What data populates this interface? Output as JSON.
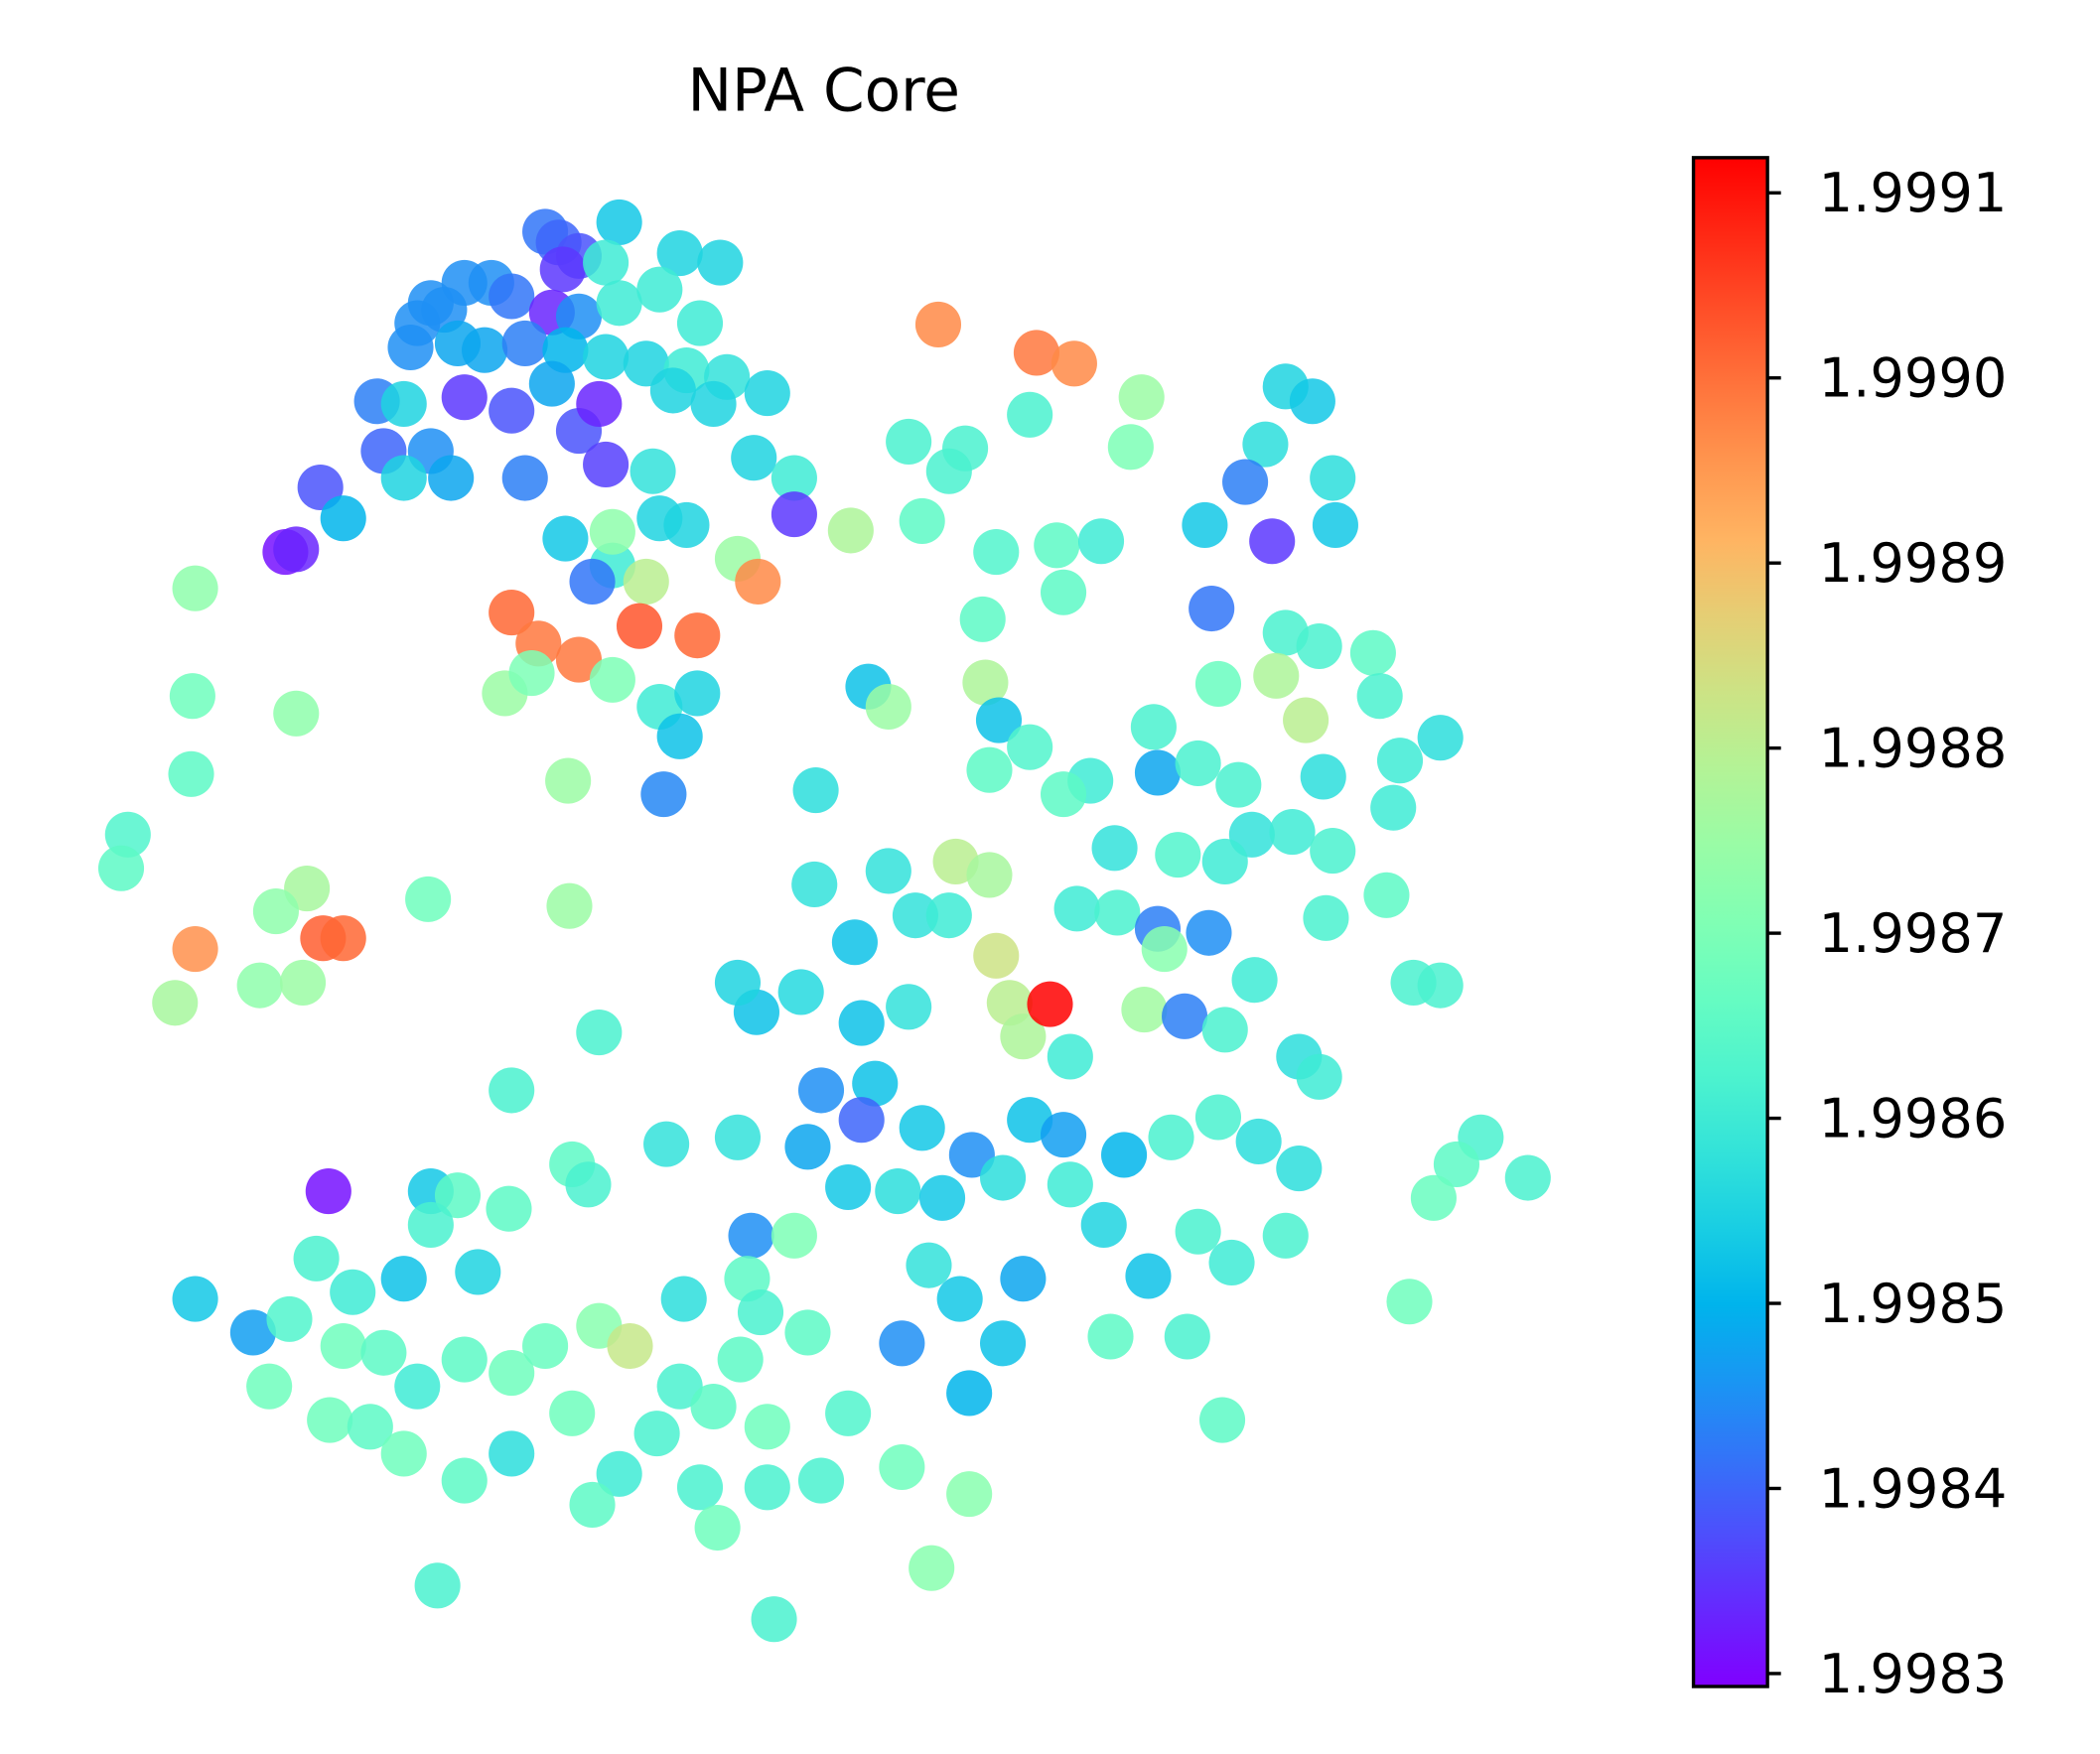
{
  "chart_data": {
    "type": "scatter",
    "title": "NPA Core",
    "colormap": "rainbow",
    "xlim": [
      60,
      1170
    ],
    "ylim": [
      1240,
      130
    ],
    "clim": [
      1.998293,
      1.999119
    ],
    "cticks": [
      1.9983,
      1.9984,
      1.9985,
      1.9986,
      1.9987,
      1.9988,
      1.9989,
      {
        "value": 1.999,
        "label": "1.9990"
      },
      1.9991
    ],
    "points": [
      [
        405,
        172,
        1.99842
      ],
      [
        415,
        180,
        1.9984
      ],
      [
        460,
        165,
        1.99853
      ],
      [
        430,
        190,
        1.99838
      ],
      [
        418,
        200,
        1.99835
      ],
      [
        450,
        195,
        1.9986
      ],
      [
        505,
        188,
        1.99855
      ],
      [
        535,
        195,
        1.99855
      ],
      [
        320,
        225,
        1.99845
      ],
      [
        345,
        210,
        1.99845
      ],
      [
        365,
        210,
        1.99845
      ],
      [
        380,
        220,
        1.99842
      ],
      [
        310,
        240,
        1.99845
      ],
      [
        330,
        230,
        1.99845
      ],
      [
        305,
        258,
        1.99845
      ],
      [
        340,
        255,
        1.99848
      ],
      [
        410,
        232,
        1.99833
      ],
      [
        430,
        235,
        1.99845
      ],
      [
        460,
        225,
        1.9986
      ],
      [
        490,
        215,
        1.9986
      ],
      [
        520,
        240,
        1.9986
      ],
      [
        360,
        260,
        1.99848
      ],
      [
        390,
        255,
        1.99843
      ],
      [
        420,
        260,
        1.9985
      ],
      [
        450,
        265,
        1.99855
      ],
      [
        480,
        270,
        1.99855
      ],
      [
        510,
        275,
        1.9986
      ],
      [
        540,
        280,
        1.99858
      ],
      [
        345,
        295,
        1.99835
      ],
      [
        380,
        305,
        1.99838
      ],
      [
        430,
        320,
        1.99838
      ],
      [
        445,
        300,
        1.99833
      ],
      [
        410,
        285,
        1.99848
      ],
      [
        500,
        290,
        1.99855
      ],
      [
        530,
        300,
        1.99855
      ],
      [
        570,
        292,
        1.99855
      ],
      [
        280,
        298,
        1.99843
      ],
      [
        300,
        300,
        1.99855
      ],
      [
        285,
        335,
        1.9984
      ],
      [
        320,
        335,
        1.99845
      ],
      [
        335,
        355,
        1.99848
      ],
      [
        300,
        355,
        1.99855
      ],
      [
        390,
        355,
        1.99843
      ],
      [
        450,
        345,
        1.99836
      ],
      [
        485,
        350,
        1.99858
      ],
      [
        560,
        340,
        1.99855
      ],
      [
        590,
        355,
        1.9986
      ],
      [
        590,
        382,
        1.99835
      ],
      [
        238,
        362,
        1.99838
      ],
      [
        255,
        385,
        1.9985
      ],
      [
        212,
        410,
        1.99831
      ],
      [
        220,
        408,
        1.99833
      ],
      [
        420,
        400,
        1.99853
      ],
      [
        455,
        420,
        1.9986
      ],
      [
        490,
        385,
        1.99855
      ],
      [
        510,
        390,
        1.99855
      ],
      [
        440,
        432,
        1.99842
      ],
      [
        480,
        432,
        1.9988
      ],
      [
        455,
        395,
        1.99873
      ],
      [
        548,
        415,
        1.99875
      ],
      [
        563,
        432,
        1.99897
      ],
      [
        380,
        455,
        1.99901
      ],
      [
        400,
        478,
        1.99899
      ],
      [
        430,
        490,
        1.99899
      ],
      [
        475,
        465,
        1.99903
      ],
      [
        518,
        472,
        1.99901
      ],
      [
        375,
        515,
        1.99875
      ],
      [
        395,
        500,
        1.9987
      ],
      [
        455,
        505,
        1.9987
      ],
      [
        490,
        525,
        1.9986
      ],
      [
        518,
        515,
        1.99855
      ],
      [
        505,
        547,
        1.99852
      ],
      [
        493,
        590,
        1.99844
      ],
      [
        145,
        437,
        1.99873
      ],
      [
        143,
        517,
        1.99868
      ],
      [
        220,
        530,
        1.99873
      ],
      [
        142,
        575,
        1.99865
      ],
      [
        422,
        580,
        1.99875
      ],
      [
        95,
        620,
        1.99863
      ],
      [
        90,
        645,
        1.99865
      ],
      [
        228,
        660,
        1.99877
      ],
      [
        205,
        677,
        1.99873
      ],
      [
        318,
        668,
        1.99868
      ],
      [
        423,
        673,
        1.99875
      ],
      [
        145,
        705,
        1.99896
      ],
      [
        240,
        697,
        1.99902
      ],
      [
        255,
        697,
        1.99901
      ],
      [
        130,
        745,
        1.99877
      ],
      [
        193,
        732,
        1.99873
      ],
      [
        225,
        730,
        1.99875
      ],
      [
        445,
        767,
        1.99862
      ],
      [
        380,
        810,
        1.99862
      ],
      [
        244,
        885,
        1.99831
      ],
      [
        697,
        241,
        1.99897
      ],
      [
        770,
        262,
        1.99899
      ],
      [
        798,
        270,
        1.99897
      ],
      [
        848,
        295,
        1.99875
      ],
      [
        765,
        308,
        1.99862
      ],
      [
        675,
        328,
        1.99862
      ],
      [
        717,
        333,
        1.99862
      ],
      [
        705,
        350,
        1.99862
      ],
      [
        840,
        332,
        1.9987
      ],
      [
        685,
        387,
        1.99865
      ],
      [
        632,
        394,
        1.99878
      ],
      [
        740,
        410,
        1.99863
      ],
      [
        785,
        405,
        1.99865
      ],
      [
        818,
        402,
        1.9986
      ],
      [
        790,
        440,
        1.99865
      ],
      [
        730,
        460,
        1.99865
      ],
      [
        645,
        510,
        1.99852
      ],
      [
        660,
        525,
        1.99875
      ],
      [
        732,
        507,
        1.99878
      ],
      [
        742,
        535,
        1.99852
      ],
      [
        765,
        555,
        1.99863
      ],
      [
        735,
        572,
        1.99865
      ],
      [
        810,
        580,
        1.9986
      ],
      [
        790,
        590,
        1.99865
      ],
      [
        606,
        587,
        1.99857
      ],
      [
        857,
        540,
        1.99862
      ],
      [
        860,
        574,
        1.99848
      ],
      [
        890,
        567,
        1.99862
      ],
      [
        920,
        583,
        1.99862
      ],
      [
        930,
        620,
        1.99858
      ],
      [
        960,
        618,
        1.9986
      ],
      [
        990,
        632,
        1.99862
      ],
      [
        828,
        630,
        1.99858
      ],
      [
        875,
        635,
        1.99863
      ],
      [
        910,
        640,
        1.9986
      ],
      [
        955,
        287,
        1.99855
      ],
      [
        975,
        298,
        1.99853
      ],
      [
        940,
        330,
        1.99857
      ],
      [
        925,
        358,
        1.99843
      ],
      [
        990,
        355,
        1.99857
      ],
      [
        945,
        402,
        1.99835
      ],
      [
        895,
        390,
        1.99853
      ],
      [
        992,
        390,
        1.99853
      ],
      [
        900,
        452,
        1.99842
      ],
      [
        955,
        470,
        1.99862
      ],
      [
        980,
        480,
        1.99862
      ],
      [
        905,
        508,
        1.99867
      ],
      [
        948,
        502,
        1.99878
      ],
      [
        970,
        535,
        1.9988
      ],
      [
        1020,
        485,
        1.99865
      ],
      [
        1025,
        517,
        1.99862
      ],
      [
        983,
        577,
        1.99857
      ],
      [
        1070,
        548,
        1.99857
      ],
      [
        1040,
        565,
        1.9986
      ],
      [
        1035,
        600,
        1.9986
      ],
      [
        1030,
        665,
        1.99865
      ],
      [
        605,
        657,
        1.99858
      ],
      [
        660,
        647,
        1.99858
      ],
      [
        680,
        680,
        1.99858
      ],
      [
        710,
        640,
        1.9988
      ],
      [
        735,
        650,
        1.99877
      ],
      [
        740,
        710,
        1.99883
      ],
      [
        750,
        745,
        1.9988
      ],
      [
        760,
        770,
        1.99878
      ],
      [
        705,
        680,
        1.9986
      ],
      [
        800,
        675,
        1.9986
      ],
      [
        830,
        678,
        1.99862
      ],
      [
        860,
        690,
        1.99843
      ],
      [
        898,
        693,
        1.99845
      ],
      [
        865,
        705,
        1.99872
      ],
      [
        932,
        728,
        1.9986
      ],
      [
        850,
        750,
        1.99876
      ],
      [
        880,
        755,
        1.99843
      ],
      [
        910,
        765,
        1.99862
      ],
      [
        795,
        785,
        1.9986
      ],
      [
        635,
        700,
        1.99852
      ],
      [
        640,
        760,
        1.99852
      ],
      [
        675,
        748,
        1.99858
      ],
      [
        595,
        737,
        1.99856
      ],
      [
        562,
        752,
        1.99852
      ],
      [
        548,
        730,
        1.99855
      ],
      [
        965,
        785,
        1.99857
      ],
      [
        980,
        800,
        1.9986
      ],
      [
        1050,
        730,
        1.99862
      ],
      [
        1070,
        732,
        1.99862
      ],
      [
        985,
        682,
        1.99862
      ],
      [
        780,
        746,
        1.99912
      ],
      [
        610,
        810,
        1.99845
      ],
      [
        650,
        805,
        1.99852
      ],
      [
        640,
        832,
        1.9984
      ],
      [
        600,
        852,
        1.99848
      ],
      [
        548,
        845,
        1.99858
      ],
      [
        495,
        850,
        1.99858
      ],
      [
        685,
        838,
        1.99853
      ],
      [
        722,
        858,
        1.99845
      ],
      [
        765,
        832,
        1.99852
      ],
      [
        790,
        843,
        1.99847
      ],
      [
        835,
        858,
        1.9985
      ],
      [
        870,
        845,
        1.99862
      ],
      [
        905,
        830,
        1.99862
      ],
      [
        935,
        848,
        1.99857
      ],
      [
        965,
        868,
        1.99857
      ],
      [
        1100,
        845,
        1.99862
      ],
      [
        1082,
        865,
        1.99865
      ],
      [
        1135,
        875,
        1.99862
      ],
      [
        1065,
        890,
        1.99867
      ],
      [
        1047,
        967,
        1.99868
      ],
      [
        630,
        882,
        1.99853
      ],
      [
        667,
        885,
        1.99857
      ],
      [
        700,
        890,
        1.99853
      ],
      [
        745,
        875,
        1.99857
      ],
      [
        795,
        880,
        1.9986
      ],
      [
        820,
        910,
        1.99855
      ],
      [
        853,
        948,
        1.99852
      ],
      [
        890,
        915,
        1.99862
      ],
      [
        915,
        938,
        1.9986
      ],
      [
        955,
        918,
        1.99862
      ],
      [
        558,
        918,
        1.99845
      ],
      [
        590,
        918,
        1.9987
      ],
      [
        690,
        940,
        1.99858
      ],
      [
        760,
        950,
        1.99848
      ],
      [
        713,
        965,
        1.99853
      ],
      [
        745,
        998,
        1.99852
      ],
      [
        670,
        998,
        1.99845
      ],
      [
        720,
        1035,
        1.9985
      ],
      [
        825,
        993,
        1.99865
      ],
      [
        882,
        993,
        1.99862
      ],
      [
        908,
        1055,
        1.99865
      ],
      [
        145,
        965,
        1.99853
      ],
      [
        188,
        990,
        1.99847
      ],
      [
        215,
        980,
        1.99863
      ],
      [
        235,
        935,
        1.99862
      ],
      [
        262,
        960,
        1.9986
      ],
      [
        300,
        950,
        1.99852
      ],
      [
        320,
        885,
        1.99853
      ],
      [
        340,
        888,
        1.99865
      ],
      [
        320,
        910,
        1.99862
      ],
      [
        355,
        945,
        1.99855
      ],
      [
        378,
        898,
        1.99865
      ],
      [
        255,
        1000,
        1.99868
      ],
      [
        285,
        1005,
        1.99865
      ],
      [
        310,
        1030,
        1.9986
      ],
      [
        345,
        1010,
        1.99865
      ],
      [
        380,
        1020,
        1.99868
      ],
      [
        405,
        1000,
        1.99867
      ],
      [
        445,
        985,
        1.99872
      ],
      [
        468,
        1000,
        1.99882
      ],
      [
        200,
        1030,
        1.99868
      ],
      [
        245,
        1055,
        1.99868
      ],
      [
        275,
        1060,
        1.99865
      ],
      [
        300,
        1080,
        1.99868
      ],
      [
        345,
        1100,
        1.99865
      ],
      [
        380,
        1080,
        1.99857
      ],
      [
        425,
        1050,
        1.99868
      ],
      [
        460,
        1095,
        1.9986
      ],
      [
        505,
        1030,
        1.99862
      ],
      [
        508,
        965,
        1.99857
      ],
      [
        555,
        950,
        1.99865
      ],
      [
        565,
        975,
        1.99862
      ],
      [
        600,
        990,
        1.99865
      ],
      [
        550,
        1010,
        1.99865
      ],
      [
        530,
        1045,
        1.99865
      ],
      [
        570,
        1060,
        1.99868
      ],
      [
        630,
        1050,
        1.99863
      ],
      [
        610,
        1100,
        1.99862
      ],
      [
        570,
        1105,
        1.99862
      ],
      [
        520,
        1105,
        1.99862
      ],
      [
        488,
        1065,
        1.99862
      ],
      [
        440,
        1118,
        1.99865
      ],
      [
        533,
        1135,
        1.99868
      ],
      [
        670,
        1090,
        1.99868
      ],
      [
        720,
        1110,
        1.99872
      ],
      [
        692,
        1165,
        1.99872
      ],
      [
        575,
        1203,
        1.99862
      ],
      [
        325,
        1178,
        1.99862
      ],
      [
        425,
        865,
        1.99865
      ],
      [
        437,
        880,
        1.99862
      ]
    ]
  }
}
